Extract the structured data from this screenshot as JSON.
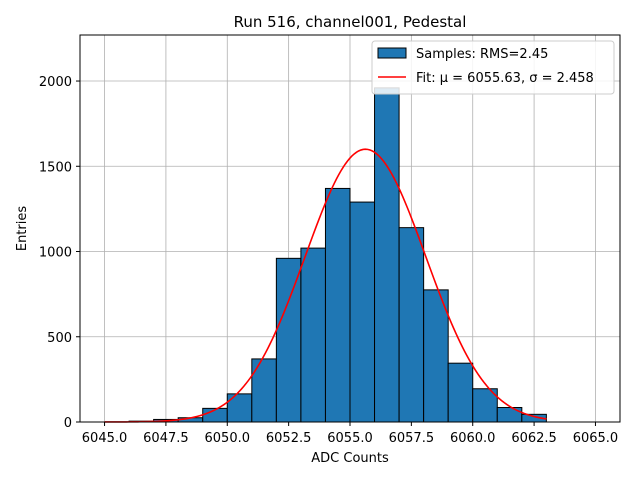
{
  "chart_data": {
    "type": "bar",
    "title": "Run 516, channel001, Pedestal",
    "xlabel": "ADC Counts",
    "ylabel": "Entries",
    "xlim": [
      6044.0,
      6066.0
    ],
    "ylim": [
      0,
      2270
    ],
    "xticks": [
      6045.0,
      6047.5,
      6050.0,
      6052.5,
      6055.0,
      6057.5,
      6060.0,
      6062.5,
      6065.0
    ],
    "xtick_labels": [
      "6045.0",
      "6047.5",
      "6050.0",
      "6052.5",
      "6055.0",
      "6057.5",
      "6060.0",
      "6062.5",
      "6065.0"
    ],
    "yticks": [
      0,
      500,
      1000,
      1500,
      2000
    ],
    "ytick_labels": [
      "0",
      "500",
      "1000",
      "1500",
      "2000"
    ],
    "grid": true,
    "legend_position": "top-right",
    "histogram": {
      "name": "Samples: RMS=2.45",
      "color": "#1f77b4",
      "edge_color": "#000000",
      "bins": [
        {
          "x0": 6046.0,
          "x1": 6047.0,
          "count": 5
        },
        {
          "x0": 6047.0,
          "x1": 6048.0,
          "count": 15
        },
        {
          "x0": 6048.0,
          "x1": 6049.0,
          "count": 25
        },
        {
          "x0": 6049.0,
          "x1": 6050.0,
          "count": 80
        },
        {
          "x0": 6050.0,
          "x1": 6051.0,
          "count": 165
        },
        {
          "x0": 6051.0,
          "x1": 6052.0,
          "count": 370
        },
        {
          "x0": 6052.0,
          "x1": 6053.0,
          "count": 960
        },
        {
          "x0": 6053.0,
          "x1": 6054.0,
          "count": 1020
        },
        {
          "x0": 6054.0,
          "x1": 6055.0,
          "count": 1370
        },
        {
          "x0": 6055.0,
          "x1": 6056.0,
          "count": 1290
        },
        {
          "x0": 6056.0,
          "x1": 6057.0,
          "count": 1960
        },
        {
          "x0": 6057.0,
          "x1": 6058.0,
          "count": 1140
        },
        {
          "x0": 6058.0,
          "x1": 6059.0,
          "count": 775
        },
        {
          "x0": 6059.0,
          "x1": 6060.0,
          "count": 345
        },
        {
          "x0": 6060.0,
          "x1": 6061.0,
          "count": 195
        },
        {
          "x0": 6061.0,
          "x1": 6062.0,
          "count": 85
        },
        {
          "x0": 6062.0,
          "x1": 6063.0,
          "count": 45
        }
      ]
    },
    "fit": {
      "name": "Fit: μ = 6055.63, σ = 2.458",
      "color": "#ff0000",
      "mu": 6055.63,
      "sigma": 2.458,
      "amplitude": 1600,
      "x_range": [
        6045.0,
        6063.0
      ]
    }
  }
}
